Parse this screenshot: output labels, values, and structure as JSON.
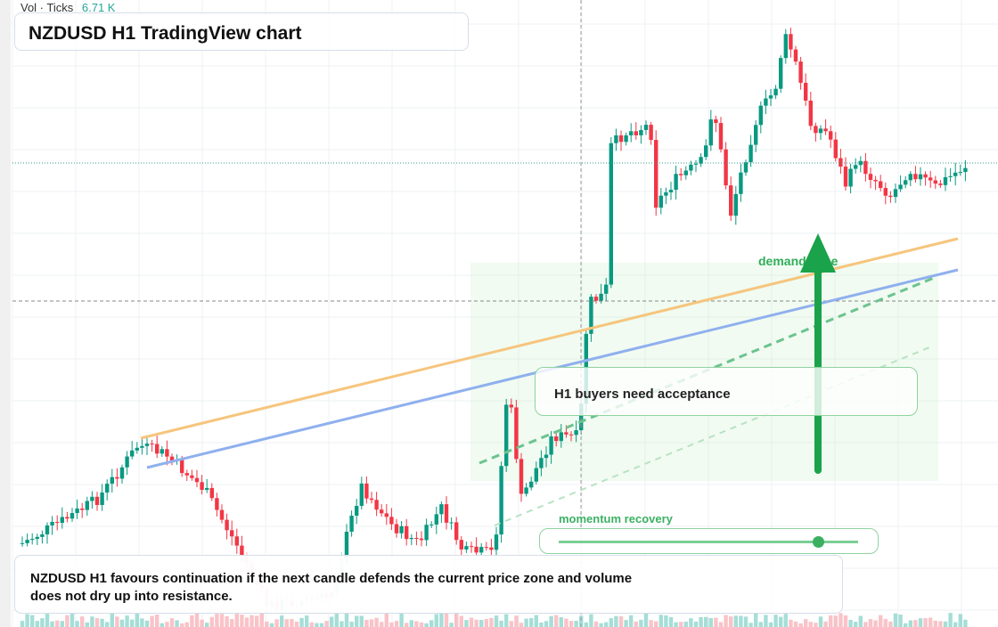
{
  "header": {
    "volume_label": "Vol · Ticks",
    "volume_value": "6.71 K",
    "title": "NZDUSD H1 TradingView chart"
  },
  "annotations": {
    "zone_label": "demand zone",
    "callout": "H1 buyers need acceptance",
    "slider_label": "momentum recovery"
  },
  "caption": {
    "line1": "NZDUSD H1 favours continuation if the next candle defends the current price zone and volume",
    "line2": "does not dry up into resistance."
  }
}
